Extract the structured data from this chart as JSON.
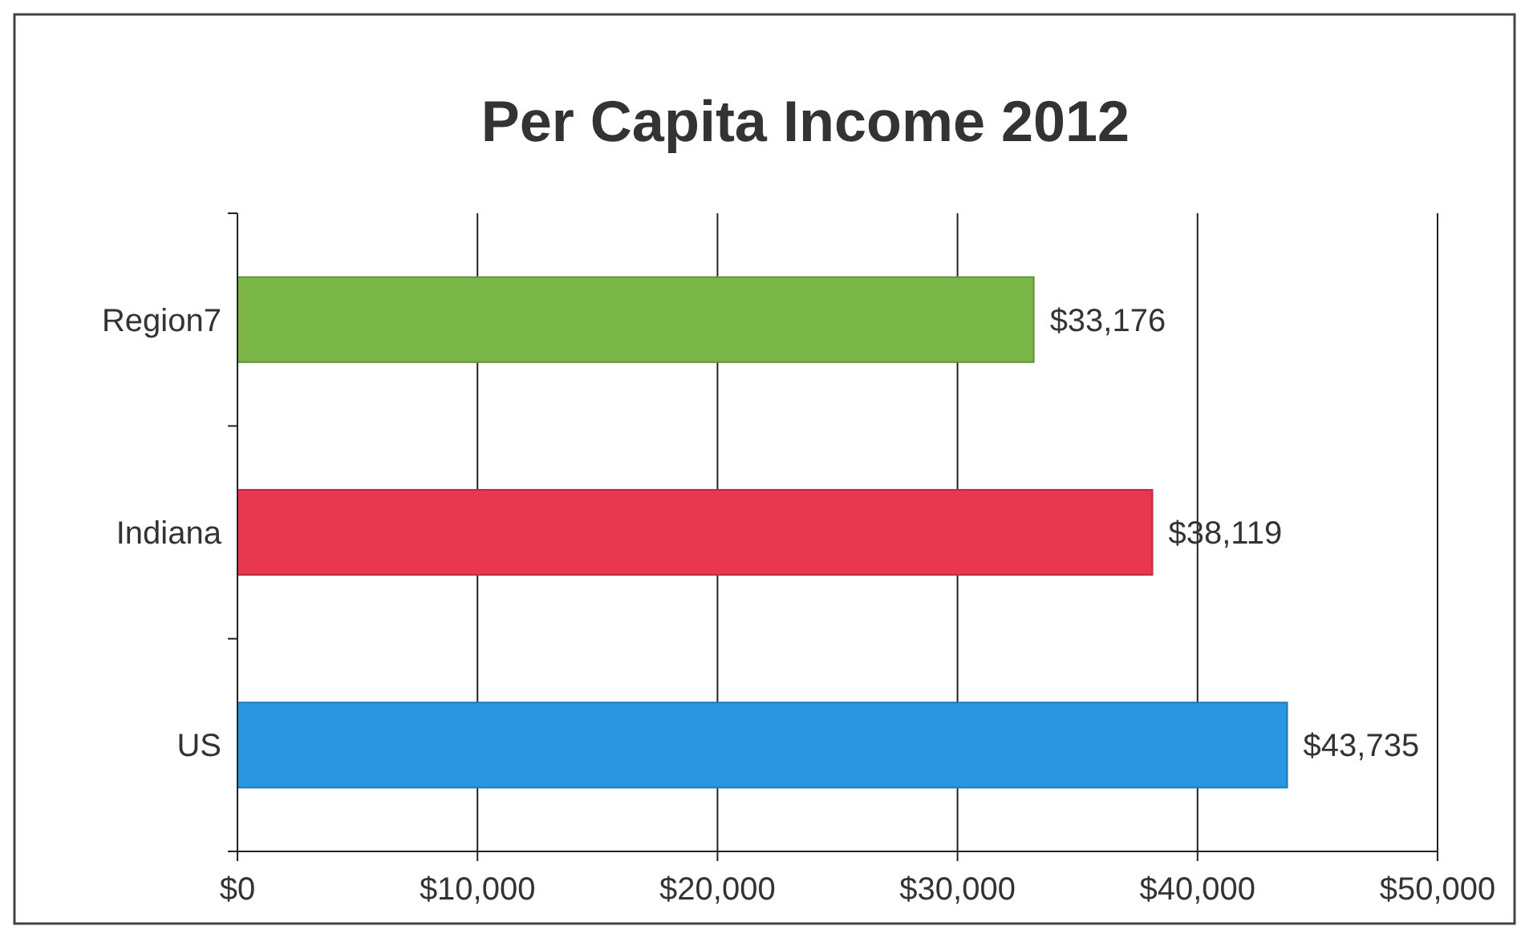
{
  "chart_data": {
    "type": "bar",
    "orientation": "horizontal",
    "title": "Per Capita Income 2012",
    "categories": [
      "Region7",
      "Indiana",
      "US"
    ],
    "values": [
      33176,
      38119,
      43735
    ],
    "colors": [
      "#7ab648",
      "#e8384f",
      "#2a96e0"
    ],
    "value_labels": [
      "$33,176",
      "$38,119",
      "$43,735"
    ],
    "xlim": [
      0,
      50000
    ],
    "xticks": [
      {
        "value": 0,
        "label": "$0"
      },
      {
        "value": 10000,
        "label": "$10,000"
      },
      {
        "value": 20000,
        "label": "$20,000"
      },
      {
        "value": 30000,
        "label": "$30,000"
      },
      {
        "value": 40000,
        "label": "$40,000"
      },
      {
        "value": 50000,
        "label": "$50,000"
      }
    ],
    "grid": "x"
  }
}
